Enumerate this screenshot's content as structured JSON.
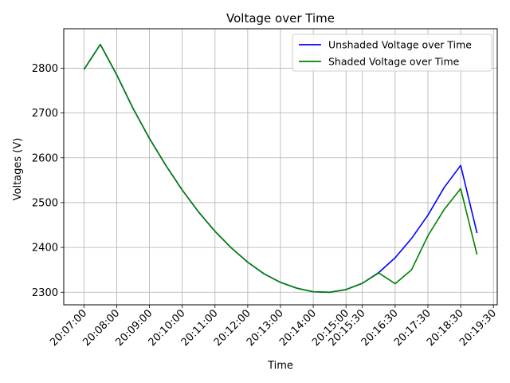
{
  "chart_data": {
    "type": "line",
    "title": "Voltage over Time",
    "xlabel": "Time",
    "ylabel": "Voltages (V)",
    "ylim": [
      2272,
      2888
    ],
    "yticks": [
      2300,
      2400,
      2500,
      2600,
      2700,
      2800
    ],
    "grid": true,
    "legend_position": "upper right",
    "x": [
      "20:07:00",
      "20:07:30",
      "20:08:00",
      "20:08:30",
      "20:09:00",
      "20:09:30",
      "20:10:00",
      "20:10:30",
      "20:11:00",
      "20:11:30",
      "20:12:00",
      "20:12:30",
      "20:13:00",
      "20:13:30",
      "20:14:00",
      "20:14:30",
      "20:15:00",
      "20:15:30",
      "20:16:00",
      "20:16:30",
      "20:17:00",
      "20:17:30",
      "20:18:00",
      "20:18:30",
      "20:19:00"
    ],
    "xticks": [
      "20:07:00",
      "20:08:00",
      "20:09:00",
      "20:10:00",
      "20:11:00",
      "20:12:00",
      "20:13:00",
      "20:14:00",
      "20:15:00",
      "20:15:30",
      "20:16:30",
      "20:17:30",
      "20:18:30",
      "20:19:30"
    ],
    "series": [
      {
        "name": "Unshaded Voltage over Time",
        "color": "#0000ff",
        "values": [
          2797,
          2853,
          2785,
          2710,
          2643,
          2583,
          2528,
          2479,
          2436,
          2399,
          2367,
          2341,
          2322,
          2309,
          2301,
          2300,
          2306,
          2320,
          2344,
          2377,
          2420,
          2472,
          2534,
          2583,
          2432
        ]
      },
      {
        "name": "Shaded Voltage over Time",
        "color": "#008000",
        "values": [
          2797,
          2853,
          2785,
          2710,
          2643,
          2583,
          2528,
          2479,
          2436,
          2399,
          2367,
          2341,
          2322,
          2309,
          2301,
          2300,
          2306,
          2320,
          2343,
          2319,
          2350,
          2426,
          2485,
          2531,
          2384
        ]
      }
    ]
  }
}
